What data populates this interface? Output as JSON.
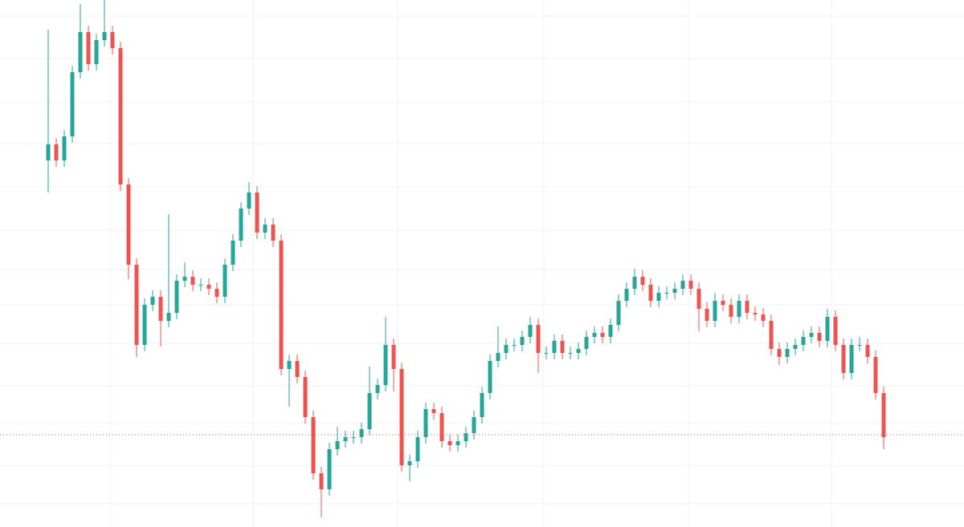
{
  "chart_data": {
    "type": "candlestick",
    "up_color": "#26a69a",
    "down_color": "#ef5350",
    "grid": true,
    "grid_color": "#eef0f4",
    "ylim": [
      0,
      657
    ],
    "yticks": [
      637,
      584,
      530,
      478,
      424,
      370,
      321,
      277,
      229,
      176,
      130,
      76,
      29
    ],
    "xlim": [
      -6,
      114
    ],
    "xticks": [
      7.7,
      25.5,
      43.5,
      61.7,
      79.7,
      97.5
    ],
    "price_line": 115,
    "price_line_color": "#ef5350",
    "open": [
      457,
      477,
      457,
      487,
      567,
      617,
      577,
      607,
      617,
      597,
      427,
      327,
      227,
      277,
      287,
      257,
      267,
      307,
      312,
      302,
      302,
      297,
      287,
      327,
      357,
      397,
      417,
      367,
      377,
      357,
      197,
      207,
      187,
      137,
      67,
      47,
      97,
      107,
      112,
      112,
      122,
      167,
      177,
      227,
      197,
      77,
      82,
      112,
      147,
      142,
      107,
      102,
      107,
      117,
      137,
      167,
      207,
      217,
      227,
      227,
      237,
      252,
      217,
      217,
      232,
      217,
      217,
      222,
      237,
      242,
      237,
      252,
      282,
      297,
      312,
      302,
      282,
      292,
      292,
      297,
      307,
      297,
      272,
      257,
      282,
      277,
      262,
      282,
      267,
      265,
      257,
      222,
      212,
      222,
      227,
      237,
      242,
      232,
      262,
      227,
      192,
      227,
      227,
      212,
      167
    ],
    "high": [
      620,
      485,
      495,
      575,
      652,
      625,
      615,
      657,
      625,
      605,
      435,
      335,
      285,
      295,
      295,
      390,
      315,
      330,
      320,
      310,
      310,
      305,
      335,
      365,
      405,
      430,
      425,
      385,
      385,
      365,
      215,
      215,
      195,
      145,
      75,
      105,
      125,
      120,
      120,
      130,
      200,
      185,
      262,
      235,
      205,
      90,
      120,
      155,
      155,
      150,
      115,
      115,
      125,
      145,
      175,
      215,
      250,
      235,
      235,
      245,
      262,
      260,
      225,
      240,
      240,
      225,
      230,
      245,
      250,
      250,
      260,
      290,
      305,
      322,
      320,
      310,
      300,
      300,
      305,
      315,
      315,
      305,
      280,
      292,
      290,
      285,
      290,
      290,
      275,
      273,
      265,
      230,
      230,
      235,
      245,
      250,
      250,
      272,
      270,
      235,
      235,
      237,
      235,
      220,
      175
    ],
    "low": [
      417,
      449,
      449,
      479,
      559,
      569,
      569,
      599,
      589,
      419,
      309,
      212,
      219,
      269,
      225,
      249,
      259,
      299,
      294,
      294,
      289,
      279,
      279,
      319,
      349,
      389,
      359,
      359,
      349,
      189,
      150,
      179,
      129,
      59,
      12,
      39,
      89,
      99,
      104,
      104,
      114,
      159,
      169,
      169,
      69,
      57,
      74,
      104,
      134,
      99,
      94,
      94,
      99,
      109,
      129,
      159,
      199,
      209,
      219,
      219,
      229,
      192,
      209,
      209,
      209,
      209,
      209,
      214,
      229,
      229,
      229,
      244,
      274,
      289,
      294,
      274,
      274,
      284,
      284,
      289,
      289,
      244,
      249,
      249,
      269,
      254,
      254,
      259,
      257,
      249,
      214,
      202,
      204,
      214,
      219,
      229,
      224,
      224,
      219,
      184,
      184,
      219,
      204,
      159,
      97
    ],
    "close": [
      477,
      457,
      487,
      567,
      617,
      577,
      607,
      617,
      597,
      427,
      327,
      227,
      277,
      287,
      257,
      267,
      307,
      312,
      302,
      302,
      297,
      287,
      327,
      357,
      397,
      417,
      367,
      377,
      357,
      197,
      207,
      187,
      137,
      67,
      47,
      97,
      107,
      112,
      112,
      122,
      167,
      177,
      227,
      197,
      77,
      82,
      112,
      147,
      142,
      107,
      102,
      107,
      117,
      137,
      167,
      207,
      217,
      227,
      227,
      237,
      252,
      217,
      217,
      232,
      217,
      217,
      222,
      237,
      242,
      237,
      252,
      282,
      297,
      312,
      302,
      282,
      292,
      292,
      297,
      307,
      297,
      272,
      257,
      282,
      277,
      262,
      282,
      267,
      265,
      257,
      222,
      212,
      222,
      227,
      237,
      242,
      232,
      262,
      227,
      192,
      227,
      227,
      212,
      167,
      112
    ]
  }
}
